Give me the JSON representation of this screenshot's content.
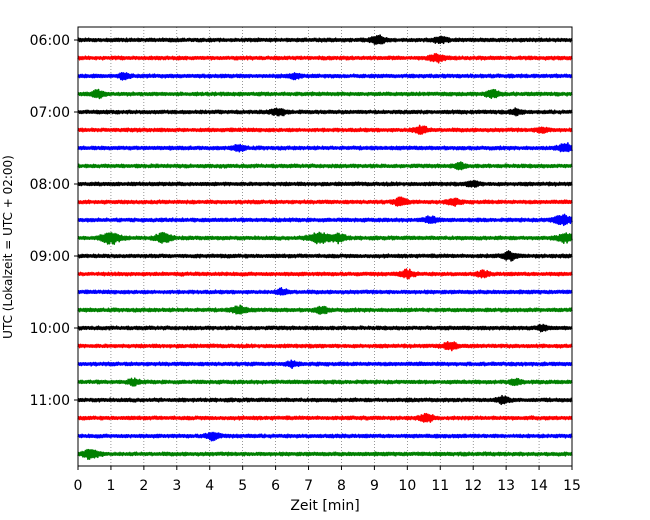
{
  "chart_data": {
    "type": "line",
    "title": "",
    "xlabel": "Zeit  [min]",
    "ylabel": "UTC (Lokalzeit = UTC + 02:00)",
    "xlim": [
      0,
      15
    ],
    "x_ticks": [
      0,
      1,
      2,
      3,
      4,
      5,
      6,
      7,
      8,
      9,
      10,
      11,
      12,
      13,
      14,
      15
    ],
    "x_tick_labels": [
      "0",
      "1",
      "2",
      "3",
      "4",
      "5",
      "6",
      "7",
      "8",
      "9",
      "10",
      "11",
      "12",
      "13",
      "14",
      "15"
    ],
    "y_tick_labels": [
      "06:00",
      "07:00",
      "08:00",
      "09:00",
      "10:00",
      "11:00"
    ],
    "trace_minutes": 15,
    "trace_colors": [
      "#000000",
      "#ff0000",
      "#0000ff",
      "#008000"
    ],
    "grid": "vertical-dotted",
    "traces": [
      {
        "start": "06:00",
        "color": "#000000",
        "events": [
          [
            9.1,
            0.9
          ],
          [
            11.0,
            0.7
          ]
        ]
      },
      {
        "start": "06:15",
        "color": "#ff0000",
        "events": [
          [
            10.9,
            0.8
          ]
        ]
      },
      {
        "start": "06:30",
        "color": "#0000ff",
        "events": [
          [
            1.4,
            0.6
          ],
          [
            6.6,
            0.6
          ]
        ]
      },
      {
        "start": "06:45",
        "color": "#008000",
        "events": [
          [
            0.6,
            0.7
          ],
          [
            12.6,
            0.8
          ]
        ]
      },
      {
        "start": "07:00",
        "color": "#000000",
        "events": [
          [
            6.1,
            0.8
          ],
          [
            13.3,
            0.6
          ]
        ]
      },
      {
        "start": "07:15",
        "color": "#ff0000",
        "events": [
          [
            10.4,
            0.8
          ],
          [
            14.1,
            0.6
          ]
        ]
      },
      {
        "start": "07:30",
        "color": "#0000ff",
        "events": [
          [
            4.9,
            0.6
          ],
          [
            14.8,
            0.9
          ]
        ]
      },
      {
        "start": "07:45",
        "color": "#008000",
        "events": [
          [
            11.6,
            0.6
          ]
        ]
      },
      {
        "start": "08:00",
        "color": "#000000",
        "events": [
          [
            12.0,
            0.6
          ]
        ]
      },
      {
        "start": "08:15",
        "color": "#ff0000",
        "events": [
          [
            9.8,
            0.8
          ],
          [
            11.4,
            0.7
          ]
        ]
      },
      {
        "start": "08:30",
        "color": "#0000ff",
        "events": [
          [
            10.7,
            0.7
          ],
          [
            14.7,
            1.1
          ]
        ]
      },
      {
        "start": "08:45",
        "color": "#008000",
        "events": [
          [
            1.0,
            1.2
          ],
          [
            2.6,
            1.0
          ],
          [
            7.3,
            1.2
          ],
          [
            7.9,
            0.9
          ],
          [
            14.8,
            0.9
          ]
        ]
      },
      {
        "start": "09:00",
        "color": "#000000",
        "events": [
          [
            13.1,
            0.8
          ]
        ]
      },
      {
        "start": "09:15",
        "color": "#ff0000",
        "events": [
          [
            10.0,
            0.8
          ],
          [
            12.3,
            0.6
          ]
        ]
      },
      {
        "start": "09:30",
        "color": "#0000ff",
        "events": [
          [
            6.2,
            0.6
          ]
        ]
      },
      {
        "start": "09:45",
        "color": "#008000",
        "events": [
          [
            4.9,
            0.8
          ],
          [
            7.4,
            0.7
          ]
        ]
      },
      {
        "start": "10:00",
        "color": "#000000",
        "events": [
          [
            14.1,
            0.6
          ]
        ]
      },
      {
        "start": "10:15",
        "color": "#ff0000",
        "events": [
          [
            11.3,
            0.8
          ]
        ]
      },
      {
        "start": "10:30",
        "color": "#0000ff",
        "events": [
          [
            6.5,
            0.6
          ]
        ]
      },
      {
        "start": "10:45",
        "color": "#008000",
        "events": [
          [
            1.7,
            0.6
          ],
          [
            13.3,
            0.6
          ]
        ]
      },
      {
        "start": "11:00",
        "color": "#000000",
        "events": [
          [
            12.9,
            0.7
          ]
        ]
      },
      {
        "start": "11:15",
        "color": "#ff0000",
        "events": [
          [
            10.6,
            0.8
          ]
        ]
      },
      {
        "start": "11:30",
        "color": "#0000ff",
        "events": [
          [
            4.1,
            0.8
          ]
        ]
      },
      {
        "start": "11:45",
        "color": "#008000",
        "events": [
          [
            0.4,
            1.0
          ]
        ]
      }
    ]
  }
}
